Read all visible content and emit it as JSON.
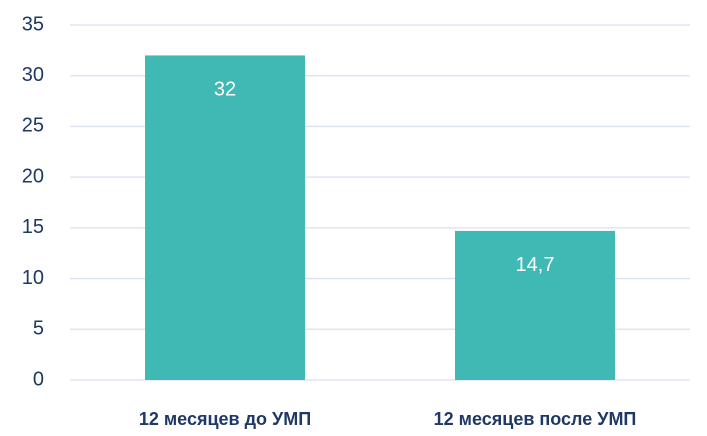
{
  "chart_data": {
    "type": "bar",
    "categories": [
      "12 месяцев до УМП",
      "12 месяцев после УМП"
    ],
    "values": [
      32,
      14.7
    ],
    "value_labels": [
      "32",
      "14,7"
    ],
    "color": "#40b8b4",
    "ylim": [
      0,
      35
    ],
    "yticks": [
      0,
      5,
      10,
      15,
      20,
      25,
      30,
      35
    ],
    "grid": true
  }
}
